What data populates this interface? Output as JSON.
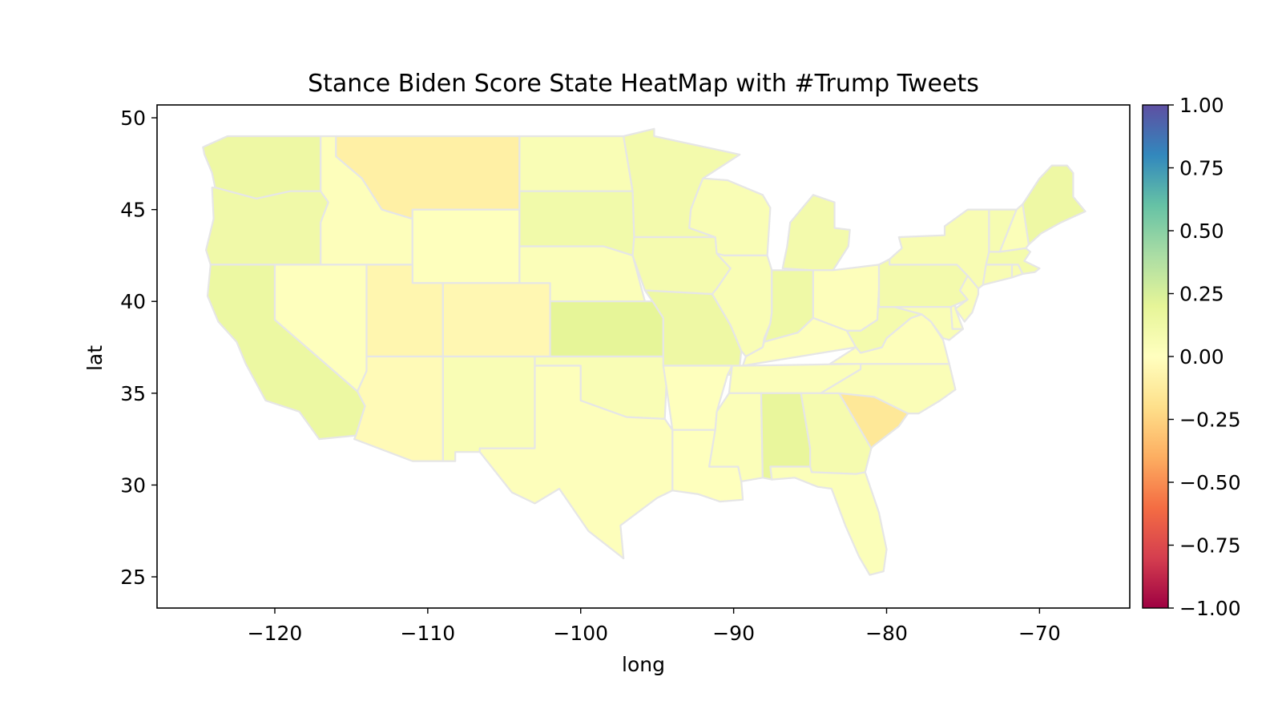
{
  "chart_data": {
    "type": "heatmap",
    "title": "Stance Biden Score State HeatMap with #Trump Tweets",
    "xlabel": "long",
    "ylabel": "lat",
    "xlim": [
      -127.7,
      -64.1
    ],
    "ylim": [
      23.3,
      50.7
    ],
    "x_ticks": [
      -120,
      -110,
      -100,
      -90,
      -80,
      -70
    ],
    "x_tick_labels": [
      "−120",
      "−110",
      "−100",
      "−90",
      "−80",
      "−70"
    ],
    "y_ticks": [
      25,
      30,
      35,
      40,
      45,
      50
    ],
    "y_tick_labels": [
      "25",
      "30",
      "35",
      "40",
      "45",
      "50"
    ],
    "colormap": "Spectral",
    "colorbar": {
      "range": [
        -1.0,
        1.0
      ],
      "ticks": [
        1.0,
        0.75,
        0.5,
        0.25,
        0.0,
        -0.25,
        -0.5,
        -0.75,
        -1.0
      ],
      "tick_labels": [
        "1.00",
        "0.75",
        "0.50",
        "0.25",
        "0.00",
        "−0.25",
        "−0.50",
        "−0.75",
        "−1.00"
      ]
    },
    "state_values": {
      "WA": 0.14,
      "OR": 0.12,
      "CA": 0.15,
      "ID": 0.02,
      "NV": 0.01,
      "MT": -0.1,
      "WY": 0.01,
      "UT": -0.06,
      "CO": -0.05,
      "AZ": -0.03,
      "NM": 0.05,
      "ND": 0.05,
      "SD": 0.11,
      "NE": 0.03,
      "KS": 0.2,
      "OK": 0.05,
      "TX": 0.02,
      "MN": 0.1,
      "IA": 0.08,
      "MO": 0.14,
      "AR": 0.01,
      "LA": 0.01,
      "WI": 0.05,
      "IL": 0.05,
      "MI": 0.1,
      "IN": 0.13,
      "OH": 0.02,
      "KY": 0.02,
      "TN": 0.03,
      "MS": 0.03,
      "AL": 0.18,
      "GA": 0.08,
      "FL": 0.03,
      "SC": -0.15,
      "NC": 0.04,
      "VA": 0.02,
      "WV": 0.09,
      "PA": 0.1,
      "NY": 0.06,
      "ME": 0.14,
      "VT": 0.07,
      "NH": 0.03,
      "MA": 0.09,
      "CT": 0.06,
      "RI": 0.06,
      "NJ": 0.04,
      "DE": 0.03,
      "MD": 0.05
    },
    "colors": {
      "state_border": "#e6e6e6"
    },
    "grid": false,
    "legend": "colorbar-right"
  }
}
